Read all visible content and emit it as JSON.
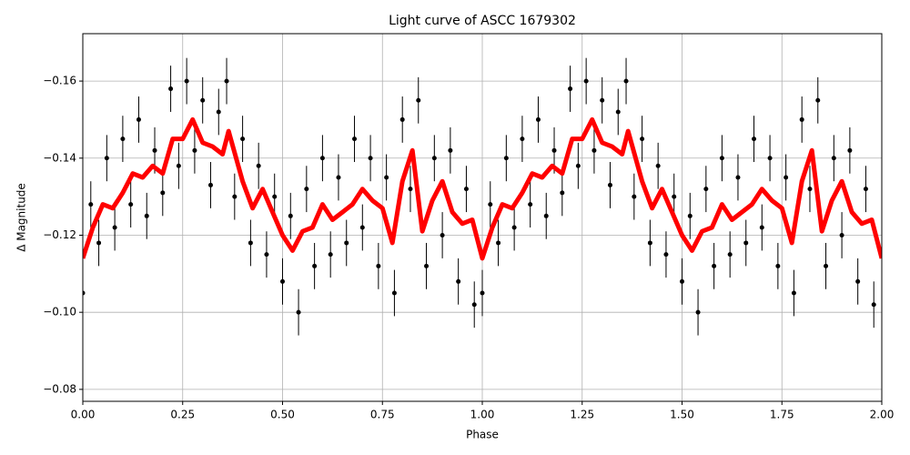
{
  "chart_data": {
    "type": "scatter",
    "title": "Light curve of ASCC 1679302",
    "xlabel": "Phase",
    "ylabel": "Δ Magnitude",
    "xlim": [
      0,
      2
    ],
    "ylim": [
      -0.0769,
      -0.1723
    ],
    "xticks": [
      {
        "value": 0,
        "label": "0.00"
      },
      {
        "value": 0.25,
        "label": "0.25"
      },
      {
        "value": 0.5,
        "label": "0.50"
      },
      {
        "value": 0.75,
        "label": "0.75"
      },
      {
        "value": 1,
        "label": "1.00"
      },
      {
        "value": 1.25,
        "label": "1.25"
      },
      {
        "value": 1.5,
        "label": "1.50"
      },
      {
        "value": 1.75,
        "label": "1.75"
      },
      {
        "value": 2,
        "label": "2.00"
      }
    ],
    "yticks": [
      {
        "value": -0.16,
        "label": "−0.16"
      },
      {
        "value": -0.14,
        "label": "−0.14"
      },
      {
        "value": -0.12,
        "label": "−0.12"
      },
      {
        "value": -0.1,
        "label": "−0.10"
      },
      {
        "value": -0.08,
        "label": "−0.08"
      }
    ],
    "grid": true,
    "points": {
      "color": "#000000",
      "error": 0.006,
      "x": [
        0,
        0.02,
        0.04,
        0.06,
        0.08,
        0.1,
        0.12,
        0.14,
        0.16,
        0.18,
        0.2,
        0.22,
        0.24,
        0.26,
        0.28,
        0.3,
        0.32,
        0.34,
        0.36,
        0.38,
        0.4,
        0.42,
        0.44,
        0.46,
        0.48,
        0.5,
        0.52,
        0.54,
        0.56,
        0.58,
        0.6,
        0.62,
        0.64,
        0.66,
        0.68,
        0.7,
        0.72,
        0.74,
        0.76,
        0.78,
        0.8,
        0.82,
        0.84,
        0.86,
        0.88,
        0.9,
        0.92,
        0.94,
        0.96,
        0.98,
        1,
        1.02,
        1.04,
        1.06,
        1.08,
        1.1,
        1.12,
        1.14,
        1.16,
        1.18,
        1.2,
        1.22,
        1.24,
        1.26,
        1.28,
        1.3,
        1.32,
        1.34,
        1.36,
        1.38,
        1.4,
        1.42,
        1.44,
        1.46,
        1.48,
        1.5,
        1.52,
        1.54,
        1.56,
        1.58,
        1.6,
        1.62,
        1.64,
        1.66,
        1.68,
        1.7,
        1.72,
        1.74,
        1.76,
        1.78,
        1.8,
        1.82,
        1.84,
        1.86,
        1.88,
        1.9,
        1.92,
        1.94,
        1.96,
        1.98
      ],
      "values": [
        -0.105,
        -0.128,
        -0.118,
        -0.14,
        -0.122,
        -0.145,
        -0.128,
        -0.15,
        -0.125,
        -0.142,
        -0.131,
        -0.158,
        -0.138,
        -0.16,
        -0.142,
        -0.155,
        -0.133,
        -0.152,
        -0.16,
        -0.13,
        -0.145,
        -0.118,
        -0.138,
        -0.115,
        -0.13,
        -0.108,
        -0.125,
        -0.1,
        -0.132,
        -0.112,
        -0.14,
        -0.115,
        -0.135,
        -0.118,
        -0.145,
        -0.122,
        -0.14,
        -0.112,
        -0.135,
        -0.105,
        -0.15,
        -0.132,
        -0.155,
        -0.112,
        -0.14,
        -0.12,
        -0.142,
        -0.108,
        -0.132,
        -0.102,
        -0.105,
        -0.128,
        -0.118,
        -0.14,
        -0.122,
        -0.145,
        -0.128,
        -0.15,
        -0.125,
        -0.142,
        -0.131,
        -0.158,
        -0.138,
        -0.16,
        -0.142,
        -0.155,
        -0.133,
        -0.152,
        -0.16,
        -0.13,
        -0.145,
        -0.118,
        -0.138,
        -0.115,
        -0.13,
        -0.108,
        -0.125,
        -0.1,
        -0.132,
        -0.112,
        -0.14,
        -0.115,
        -0.135,
        -0.118,
        -0.145,
        -0.122,
        -0.14,
        -0.112,
        -0.135,
        -0.105,
        -0.15,
        -0.132,
        -0.155,
        -0.112,
        -0.14,
        -0.12,
        -0.142,
        -0.108,
        -0.132,
        -0.102
      ]
    },
    "curve": {
      "color": "#ff0000",
      "x": [
        0,
        0.025,
        0.05,
        0.075,
        0.1,
        0.125,
        0.15,
        0.175,
        0.2,
        0.225,
        0.25,
        0.275,
        0.3,
        0.325,
        0.35,
        0.365,
        0.4,
        0.425,
        0.45,
        0.475,
        0.5,
        0.525,
        0.55,
        0.575,
        0.6,
        0.625,
        0.65,
        0.675,
        0.7,
        0.725,
        0.75,
        0.775,
        0.8,
        0.825,
        0.85,
        0.875,
        0.9,
        0.925,
        0.95,
        0.975,
        1,
        1.025,
        1.05,
        1.075,
        1.1,
        1.125,
        1.15,
        1.175,
        1.2,
        1.225,
        1.25,
        1.275,
        1.3,
        1.325,
        1.35,
        1.365,
        1.4,
        1.425,
        1.45,
        1.475,
        1.5,
        1.525,
        1.55,
        1.575,
        1.6,
        1.625,
        1.65,
        1.675,
        1.7,
        1.725,
        1.75,
        1.775,
        1.8,
        1.825,
        1.85,
        1.875,
        1.9,
        1.925,
        1.95,
        1.975,
        2
      ],
      "values": [
        -0.114,
        -0.122,
        -0.128,
        -0.127,
        -0.131,
        -0.136,
        -0.135,
        -0.138,
        -0.136,
        -0.145,
        -0.145,
        -0.15,
        -0.144,
        -0.143,
        -0.141,
        -0.147,
        -0.134,
        -0.127,
        -0.132,
        -0.126,
        -0.12,
        -0.116,
        -0.121,
        -0.122,
        -0.128,
        -0.124,
        -0.126,
        -0.128,
        -0.132,
        -0.129,
        -0.127,
        -0.118,
        -0.134,
        -0.142,
        -0.121,
        -0.129,
        -0.134,
        -0.126,
        -0.123,
        -0.124,
        -0.114,
        -0.122,
        -0.128,
        -0.127,
        -0.131,
        -0.136,
        -0.135,
        -0.138,
        -0.136,
        -0.145,
        -0.145,
        -0.15,
        -0.144,
        -0.143,
        -0.141,
        -0.147,
        -0.134,
        -0.127,
        -0.132,
        -0.126,
        -0.12,
        -0.116,
        -0.121,
        -0.122,
        -0.128,
        -0.124,
        -0.126,
        -0.128,
        -0.132,
        -0.129,
        -0.127,
        -0.118,
        -0.134,
        -0.142,
        -0.121,
        -0.129,
        -0.134,
        -0.126,
        -0.123,
        -0.124,
        -0.114
      ]
    }
  }
}
